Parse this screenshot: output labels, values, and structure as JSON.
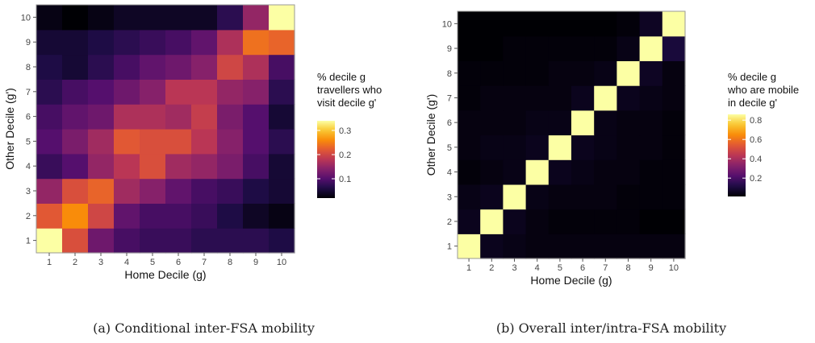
{
  "chart_data": [
    {
      "type": "heatmap",
      "x_categories": [
        "1",
        "2",
        "3",
        "4",
        "5",
        "6",
        "7",
        "8",
        "9",
        "10"
      ],
      "y_categories": [
        "1",
        "2",
        "3",
        "4",
        "5",
        "6",
        "7",
        "8",
        "9",
        "10"
      ],
      "xlabel": "Home Decile (g)",
      "ylabel": "Other Decile (g')",
      "legend_title": [
        "% decile g",
        "travellers who",
        "visit decile g'"
      ],
      "legend_ticks": [
        0.1,
        0.2,
        0.3
      ],
      "legend_range": [
        0.02,
        0.34
      ],
      "caption": "(a) Conditional inter-FSA mobility",
      "values": [
        [
          0.34,
          0.21,
          0.12,
          0.09,
          0.08,
          0.08,
          0.07,
          0.07,
          0.07,
          0.06
        ],
        [
          0.22,
          0.26,
          0.2,
          0.11,
          0.09,
          0.09,
          0.08,
          0.06,
          0.04,
          0.03
        ],
        [
          0.15,
          0.21,
          0.23,
          0.16,
          0.14,
          0.11,
          0.09,
          0.08,
          0.06,
          0.05
        ],
        [
          0.08,
          0.1,
          0.15,
          0.18,
          0.21,
          0.16,
          0.15,
          0.13,
          0.09,
          0.05
        ],
        [
          0.1,
          0.13,
          0.16,
          0.22,
          0.21,
          0.21,
          0.18,
          0.14,
          0.1,
          0.07
        ],
        [
          0.09,
          0.11,
          0.12,
          0.17,
          0.17,
          0.16,
          0.19,
          0.13,
          0.1,
          0.05
        ],
        [
          0.07,
          0.09,
          0.1,
          0.12,
          0.14,
          0.18,
          0.18,
          0.15,
          0.14,
          0.07
        ],
        [
          0.06,
          0.05,
          0.07,
          0.09,
          0.11,
          0.12,
          0.14,
          0.2,
          0.17,
          0.09
        ],
        [
          0.05,
          0.05,
          0.06,
          0.07,
          0.08,
          0.09,
          0.11,
          0.17,
          0.24,
          0.23
        ],
        [
          0.03,
          0.02,
          0.03,
          0.04,
          0.04,
          0.04,
          0.04,
          0.07,
          0.15,
          0.34
        ]
      ]
    },
    {
      "type": "heatmap",
      "x_categories": [
        "1",
        "2",
        "3",
        "4",
        "5",
        "6",
        "7",
        "8",
        "9",
        "10"
      ],
      "y_categories": [
        "1",
        "2",
        "3",
        "4",
        "5",
        "6",
        "7",
        "8",
        "9",
        "10"
      ],
      "xlabel": "Home Decile (g)",
      "ylabel": "Other Decile (g')",
      "legend_title": [
        "% decile g",
        "who are mobile",
        "in decile g'"
      ],
      "legend_ticks": [
        0.2,
        0.4,
        0.6,
        0.8
      ],
      "legend_range": [
        0.01,
        0.86
      ],
      "caption": "(b) Overall inter/intra-FSA mobility",
      "values": [
        [
          0.86,
          0.05,
          0.04,
          0.03,
          0.03,
          0.03,
          0.03,
          0.03,
          0.03,
          0.03
        ],
        [
          0.05,
          0.86,
          0.05,
          0.03,
          0.02,
          0.02,
          0.02,
          0.02,
          0.01,
          0.01
        ],
        [
          0.04,
          0.05,
          0.86,
          0.04,
          0.03,
          0.03,
          0.03,
          0.02,
          0.02,
          0.02
        ],
        [
          0.02,
          0.03,
          0.04,
          0.86,
          0.05,
          0.04,
          0.03,
          0.03,
          0.02,
          0.02
        ],
        [
          0.03,
          0.04,
          0.04,
          0.05,
          0.86,
          0.05,
          0.04,
          0.03,
          0.03,
          0.02
        ],
        [
          0.03,
          0.03,
          0.03,
          0.04,
          0.04,
          0.86,
          0.04,
          0.03,
          0.03,
          0.02
        ],
        [
          0.02,
          0.03,
          0.03,
          0.03,
          0.03,
          0.05,
          0.86,
          0.05,
          0.04,
          0.03
        ],
        [
          0.02,
          0.02,
          0.02,
          0.02,
          0.03,
          0.03,
          0.04,
          0.86,
          0.06,
          0.03
        ],
        [
          0.01,
          0.01,
          0.02,
          0.02,
          0.02,
          0.02,
          0.02,
          0.04,
          0.86,
          0.1
        ],
        [
          0.01,
          0.01,
          0.01,
          0.01,
          0.01,
          0.01,
          0.01,
          0.02,
          0.06,
          0.86
        ]
      ]
    }
  ]
}
